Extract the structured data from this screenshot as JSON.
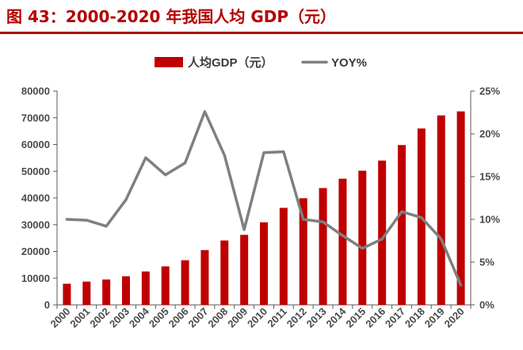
{
  "title": "图 43：2000-2020 年我国人均 GDP（元）",
  "chart_data": {
    "type": "bar",
    "categories": [
      "2000",
      "2001",
      "2002",
      "2003",
      "2004",
      "2005",
      "2006",
      "2007",
      "2008",
      "2009",
      "2010",
      "2011",
      "2012",
      "2013",
      "2014",
      "2015",
      "2016",
      "2017",
      "2018",
      "2019",
      "2020"
    ],
    "series": [
      {
        "name": "人均GDP（元）",
        "type": "bar",
        "axis": "left",
        "color": "#c00000",
        "values": [
          7900,
          8700,
          9500,
          10700,
          12500,
          14400,
          16700,
          20500,
          24100,
          26200,
          30900,
          36300,
          39900,
          43700,
          47200,
          50200,
          54000,
          59800,
          66000,
          70900,
          72400
        ]
      },
      {
        "name": "YOY%",
        "type": "line",
        "axis": "right",
        "color": "#7f7f7f",
        "values": [
          10.0,
          9.9,
          9.2,
          12.3,
          17.2,
          15.2,
          16.6,
          22.6,
          17.5,
          8.8,
          17.8,
          17.9,
          10.0,
          9.7,
          8.1,
          6.6,
          7.7,
          10.9,
          10.2,
          7.7,
          2.3
        ]
      }
    ],
    "y_left": {
      "min": 0,
      "max": 80000,
      "ticks": [
        "0",
        "10000",
        "20000",
        "30000",
        "40000",
        "50000",
        "60000",
        "70000",
        "80000"
      ]
    },
    "y_right": {
      "min": 0,
      "max": 25,
      "ticks": [
        "0%",
        "5%",
        "10%",
        "15%",
        "20%",
        "25%"
      ]
    },
    "xlabel": "",
    "ylabel": "",
    "legend_position": "top-center",
    "grid": false
  }
}
